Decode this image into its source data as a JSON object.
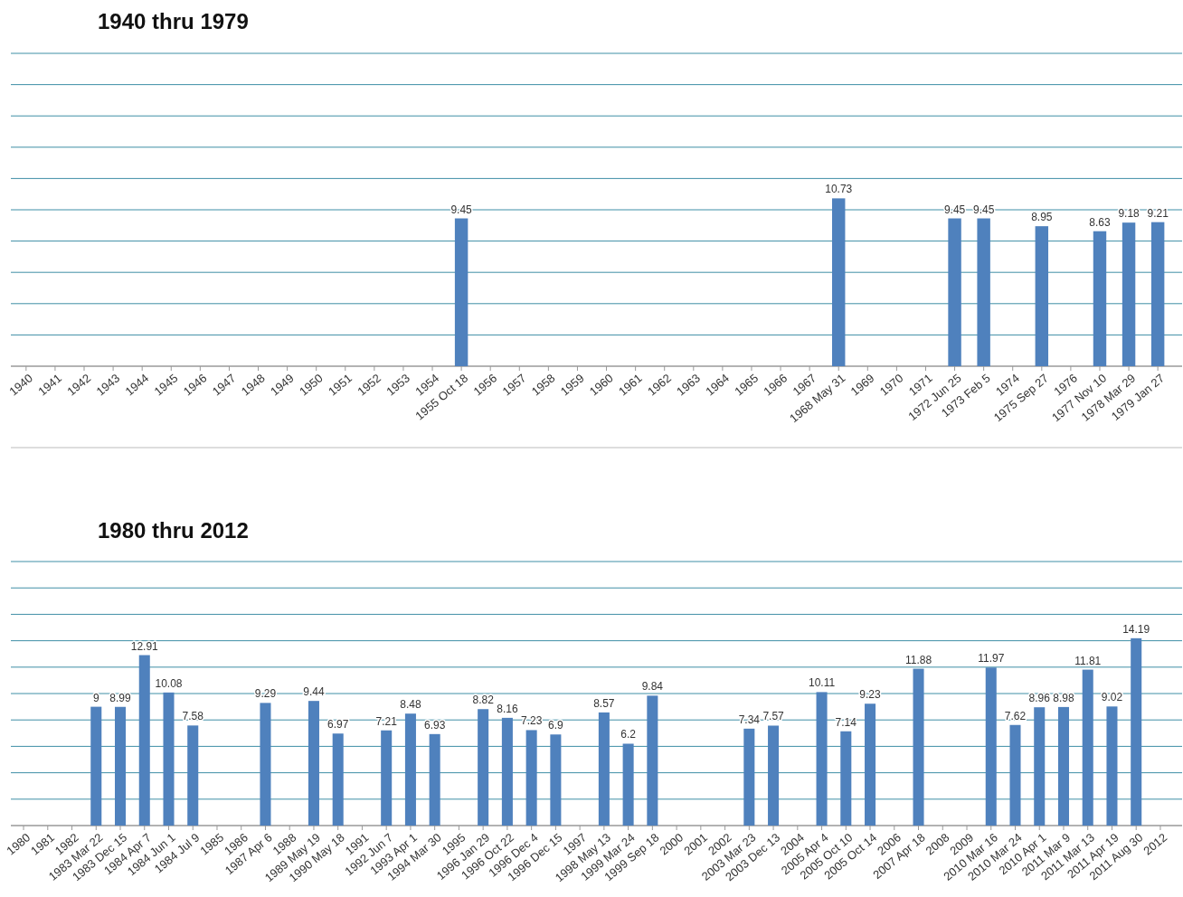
{
  "chart_data": [
    {
      "type": "bar",
      "title": "1940 thru 1979",
      "categories": [
        "1940",
        "1941",
        "1942",
        "1943",
        "1944",
        "1945",
        "1946",
        "1947",
        "1948",
        "1949",
        "1950",
        "1951",
        "1952",
        "1953",
        "1954",
        "1955 Oct 18",
        "1956",
        "1957",
        "1958",
        "1959",
        "1960",
        "1961",
        "1962",
        "1963",
        "1964",
        "1965",
        "1966",
        "1967",
        "1968 May 31",
        "1969",
        "1970",
        "1971",
        "1972 Jun 25",
        "1973 Feb 5",
        "1974",
        "1975 Sep 27",
        "1976",
        "1977 Nov 10",
        "1978 Mar 29",
        "1979 Jan 27"
      ],
      "values": [
        null,
        null,
        null,
        null,
        null,
        null,
        null,
        null,
        null,
        null,
        null,
        null,
        null,
        null,
        null,
        9.45,
        null,
        null,
        null,
        null,
        null,
        null,
        null,
        null,
        null,
        null,
        null,
        null,
        10.73,
        null,
        null,
        null,
        9.45,
        9.45,
        null,
        8.95,
        null,
        8.63,
        9.18,
        9.21
      ],
      "color": "#4f81bd",
      "ylim": [
        0,
        20
      ],
      "yticks": [
        {
          "value": 0,
          "label": null
        },
        {
          "value": 2,
          "label": null
        },
        {
          "value": 4,
          "label": null
        },
        {
          "value": 6,
          "label": null
        },
        {
          "value": 8,
          "label": null
        },
        {
          "value": 10,
          "label": null
        },
        {
          "value": 12,
          "label": null
        },
        {
          "value": 14,
          "label": null
        },
        {
          "value": 16,
          "label": null
        },
        {
          "value": 18,
          "label": null
        },
        {
          "value": 20,
          "label": null
        }
      ],
      "grid": "y",
      "data_labels": true,
      "tick_labels": "x"
    },
    {
      "type": "bar",
      "title": "1980 thru 2012",
      "categories": [
        "1980",
        "1981",
        "1982",
        "1983 Mar 22",
        "1983 Dec 15",
        "1984 Apr 7",
        "1984 Jun 1",
        "1984 Jul 9",
        "1985",
        "1986",
        "1987 Apr 6",
        "1988",
        "1989 May 19",
        "1990 May 18",
        "1991",
        "1992 Jun 7",
        "1993 Apr 1",
        "1994 Mar 30",
        "1995",
        "1996 Jan 29",
        "1996 Oct 22",
        "1996 Dec 4",
        "1996 Dec 15",
        "1997",
        "1998 May 13",
        "1999 Mar 24",
        "1999 Sep 18",
        "2000",
        "2001",
        "2002",
        "2003 Mar 23",
        "2003 Dec 13",
        "2004",
        "2005 Apr 4",
        "2005 Oct 10",
        "2005 Oct 14",
        "2006",
        "2007 Apr 18",
        "2008",
        "2009",
        "2010 Mar 16",
        "2010 Mar 24",
        "2010 Apr 1",
        "2011 Mar 9",
        "2011 Mar 13",
        "2011 Apr 19",
        "2011 Aug 30",
        "2012"
      ],
      "values": [
        null,
        null,
        null,
        9,
        8.99,
        12.91,
        10.08,
        7.58,
        null,
        null,
        9.29,
        null,
        9.44,
        6.97,
        null,
        7.21,
        8.48,
        6.93,
        null,
        8.82,
        8.16,
        7.23,
        6.9,
        null,
        8.57,
        6.2,
        9.84,
        null,
        null,
        null,
        7.34,
        7.57,
        null,
        10.11,
        7.14,
        9.23,
        null,
        11.88,
        null,
        null,
        11.97,
        7.62,
        8.96,
        8.98,
        11.81,
        9.02,
        14.19,
        null
      ],
      "color": "#4f81bd",
      "ylim": [
        0,
        20
      ],
      "yticks": [
        {
          "value": 0,
          "label": null
        },
        {
          "value": 2,
          "label": null
        },
        {
          "value": 4,
          "label": null
        },
        {
          "value": 6,
          "label": null
        },
        {
          "value": 8,
          "label": null
        },
        {
          "value": 10,
          "label": null
        },
        {
          "value": 12,
          "label": null
        },
        {
          "value": 14,
          "label": null
        },
        {
          "value": 16,
          "label": null
        },
        {
          "value": 18,
          "label": null
        },
        {
          "value": 20,
          "label": null
        }
      ],
      "grid": "y",
      "data_labels": true,
      "tick_labels": "x"
    }
  ]
}
